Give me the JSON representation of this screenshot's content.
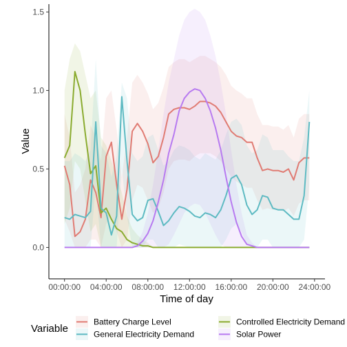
{
  "chart_data": {
    "type": "line",
    "xlabel": "Time of day",
    "ylabel": "Value",
    "x_ticks": [
      "00:00:00",
      "04:00:00",
      "08:00:00",
      "12:00:00",
      "16:00:00",
      "20:00:00",
      "24:00:00"
    ],
    "y_ticks": [
      "0.0",
      "0.5",
      "1.0",
      "1.5"
    ],
    "xlim": [
      -1.5,
      25.0
    ],
    "ylim": [
      -0.2,
      1.55
    ],
    "grid": false,
    "legend_title": "Variable",
    "legend_position": "bottom",
    "hours": [
      0.0,
      0.5,
      1.0,
      1.5,
      2.0,
      2.5,
      3.0,
      3.5,
      4.0,
      4.5,
      5.0,
      5.5,
      6.0,
      6.5,
      7.0,
      7.5,
      8.0,
      8.5,
      9.0,
      9.5,
      10.0,
      10.5,
      11.0,
      11.5,
      12.0,
      12.5,
      13.0,
      13.5,
      14.0,
      14.5,
      15.0,
      15.5,
      16.0,
      16.5,
      17.0,
      17.5,
      18.0,
      18.5,
      19.0,
      19.5,
      20.0,
      20.5,
      21.0,
      21.5,
      22.0,
      22.5,
      23.0,
      23.5
    ],
    "series": [
      {
        "name": "Battery Charge Level",
        "color": "#E07B73",
        "values": [
          0.52,
          0.4,
          0.07,
          0.1,
          0.18,
          0.43,
          0.35,
          0.19,
          0.58,
          0.67,
          0.4,
          0.18,
          0.37,
          0.74,
          0.79,
          0.74,
          0.66,
          0.54,
          0.58,
          0.7,
          0.85,
          0.88,
          0.89,
          0.89,
          0.88,
          0.9,
          0.93,
          0.93,
          0.92,
          0.9,
          0.86,
          0.8,
          0.74,
          0.71,
          0.7,
          0.67,
          0.67,
          0.57,
          0.49,
          0.5,
          0.49,
          0.49,
          0.48,
          0.5,
          0.43,
          0.54,
          0.57,
          0.57
        ],
        "lower": [
          0.18,
          0.1,
          0.0,
          0.0,
          0.0,
          0.05,
          0.05,
          0.0,
          0.15,
          0.2,
          0.1,
          0.0,
          0.05,
          0.3,
          0.4,
          0.38,
          0.3,
          0.22,
          0.25,
          0.35,
          0.5,
          0.55,
          0.56,
          0.56,
          0.55,
          0.58,
          0.6,
          0.6,
          0.6,
          0.58,
          0.55,
          0.5,
          0.45,
          0.42,
          0.4,
          0.38,
          0.38,
          0.3,
          0.24,
          0.25,
          0.24,
          0.24,
          0.23,
          0.25,
          0.2,
          0.28,
          0.3,
          0.3
        ],
        "upper": [
          0.85,
          0.7,
          0.35,
          0.4,
          0.5,
          0.78,
          0.7,
          0.55,
          0.95,
          1.0,
          0.75,
          0.45,
          0.7,
          1.05,
          1.1,
          1.05,
          0.98,
          0.88,
          0.92,
          1.02,
          1.15,
          1.18,
          1.2,
          1.2,
          1.18,
          1.2,
          1.22,
          1.22,
          1.2,
          1.18,
          1.15,
          1.1,
          1.03,
          1.0,
          0.98,
          0.95,
          0.95,
          0.85,
          0.78,
          0.78,
          0.77,
          0.77,
          0.75,
          0.78,
          0.7,
          0.82,
          0.85,
          0.85
        ]
      },
      {
        "name": "Controlled Electricity Demand",
        "color": "#8AAB2F",
        "values": [
          0.57,
          0.65,
          1.12,
          1.0,
          0.72,
          0.47,
          0.52,
          0.22,
          0.25,
          0.18,
          0.12,
          0.1,
          0.05,
          0.03,
          0.02,
          0.01,
          0.01,
          0.0,
          0.0,
          0.0,
          0.0,
          0.0,
          0.0,
          0.0,
          0.0,
          0.0,
          0.0,
          0.0,
          0.0,
          0.0,
          0.0,
          0.0,
          0.0,
          0.0,
          0.0,
          0.0,
          0.0,
          0.0,
          0.0,
          0.0,
          0.0,
          0.0,
          0.0,
          0.0,
          0.0,
          0.0,
          0.0,
          0.0
        ],
        "lower": [
          0.15,
          0.25,
          0.55,
          0.5,
          0.3,
          0.1,
          0.15,
          0.0,
          0.0,
          0.0,
          0.0,
          0.0,
          0.0,
          0.0,
          0.0,
          0.0,
          0.0,
          0.0,
          0.0,
          0.0,
          0.0,
          0.0,
          0.0,
          0.0,
          0.0,
          0.0,
          0.0,
          0.0,
          0.0,
          0.0,
          0.0,
          0.0,
          0.0,
          0.0,
          0.0,
          0.0,
          0.0,
          0.0,
          0.0,
          0.0,
          0.0,
          0.0,
          0.0,
          0.0,
          0.0,
          0.0,
          0.0,
          0.0
        ],
        "upper": [
          1.0,
          1.2,
          1.3,
          1.25,
          1.1,
          0.95,
          1.0,
          0.7,
          0.65,
          0.55,
          0.45,
          0.35,
          0.2,
          0.12,
          0.08,
          0.05,
          0.03,
          0.0,
          0.0,
          0.0,
          0.0,
          0.0,
          0.0,
          0.0,
          0.0,
          0.0,
          0.0,
          0.0,
          0.0,
          0.0,
          0.0,
          0.0,
          0.0,
          0.0,
          0.0,
          0.0,
          0.0,
          0.0,
          0.0,
          0.0,
          0.0,
          0.0,
          0.0,
          0.0,
          0.0,
          0.0,
          0.0,
          0.0
        ]
      },
      {
        "name": "General Electricity Demand",
        "color": "#5DBAC2",
        "values": [
          0.19,
          0.18,
          0.21,
          0.2,
          0.19,
          0.23,
          0.8,
          0.25,
          0.22,
          0.08,
          0.2,
          0.96,
          0.55,
          0.21,
          0.17,
          0.19,
          0.3,
          0.31,
          0.23,
          0.14,
          0.17,
          0.22,
          0.26,
          0.25,
          0.23,
          0.2,
          0.19,
          0.22,
          0.21,
          0.19,
          0.24,
          0.33,
          0.44,
          0.46,
          0.4,
          0.27,
          0.21,
          0.24,
          0.33,
          0.32,
          0.25,
          0.24,
          0.24,
          0.21,
          0.18,
          0.18,
          0.33,
          0.8
        ],
        "lower": [
          0.0,
          0.0,
          0.0,
          0.0,
          0.0,
          0.0,
          0.4,
          0.0,
          0.0,
          0.0,
          0.0,
          0.5,
          0.2,
          0.0,
          0.0,
          0.0,
          0.05,
          0.05,
          0.0,
          0.0,
          0.0,
          0.0,
          0.02,
          0.01,
          0.0,
          0.0,
          0.0,
          0.0,
          0.0,
          0.0,
          0.0,
          0.05,
          0.12,
          0.15,
          0.1,
          0.02,
          0.0,
          0.0,
          0.05,
          0.05,
          0.0,
          0.0,
          0.0,
          0.0,
          0.0,
          0.0,
          0.05,
          0.4
        ],
        "upper": [
          0.55,
          0.55,
          0.6,
          0.58,
          0.55,
          0.62,
          1.2,
          0.65,
          0.6,
          0.45,
          0.58,
          1.05,
          0.95,
          0.6,
          0.55,
          0.58,
          0.7,
          0.72,
          0.62,
          0.52,
          0.55,
          0.62,
          0.65,
          0.64,
          0.62,
          0.58,
          0.56,
          0.6,
          0.58,
          0.56,
          0.62,
          0.72,
          0.8,
          0.82,
          0.78,
          0.65,
          0.6,
          0.62,
          0.72,
          0.7,
          0.62,
          0.62,
          0.62,
          0.58,
          0.55,
          0.55,
          0.7,
          1.0
        ]
      },
      {
        "name": "Solar Power",
        "color": "#B77AF0",
        "values": [
          0.0,
          0.0,
          0.0,
          0.0,
          0.0,
          0.0,
          0.0,
          0.0,
          0.0,
          0.0,
          0.0,
          0.0,
          0.0,
          0.0,
          0.01,
          0.04,
          0.09,
          0.17,
          0.29,
          0.43,
          0.6,
          0.72,
          0.87,
          0.95,
          0.99,
          1.01,
          1.0,
          0.95,
          0.87,
          0.76,
          0.62,
          0.45,
          0.29,
          0.16,
          0.07,
          0.02,
          0.01,
          0.0,
          0.0,
          0.0,
          0.0,
          0.0,
          0.0,
          0.0,
          0.0,
          0.0,
          0.0,
          0.0
        ],
        "lower": [
          0.0,
          0.0,
          0.0,
          0.0,
          0.0,
          0.0,
          0.0,
          0.0,
          0.0,
          0.0,
          0.0,
          0.0,
          0.0,
          0.0,
          0.0,
          0.0,
          0.0,
          0.0,
          0.0,
          0.0,
          0.02,
          0.08,
          0.15,
          0.22,
          0.26,
          0.28,
          0.27,
          0.22,
          0.15,
          0.08,
          0.02,
          0.0,
          0.0,
          0.0,
          0.0,
          0.0,
          0.0,
          0.0,
          0.0,
          0.0,
          0.0,
          0.0,
          0.0,
          0.0,
          0.0,
          0.0,
          0.0,
          0.0
        ],
        "upper": [
          0.0,
          0.0,
          0.0,
          0.0,
          0.0,
          0.0,
          0.0,
          0.0,
          0.0,
          0.0,
          0.0,
          0.0,
          0.0,
          0.0,
          0.03,
          0.1,
          0.22,
          0.4,
          0.62,
          0.85,
          1.05,
          1.2,
          1.35,
          1.45,
          1.5,
          1.52,
          1.5,
          1.45,
          1.35,
          1.22,
          1.05,
          0.85,
          0.62,
          0.4,
          0.22,
          0.08,
          0.03,
          0.0,
          0.0,
          0.0,
          0.0,
          0.0,
          0.0,
          0.0,
          0.0,
          0.0,
          0.0,
          0.0
        ]
      }
    ]
  }
}
